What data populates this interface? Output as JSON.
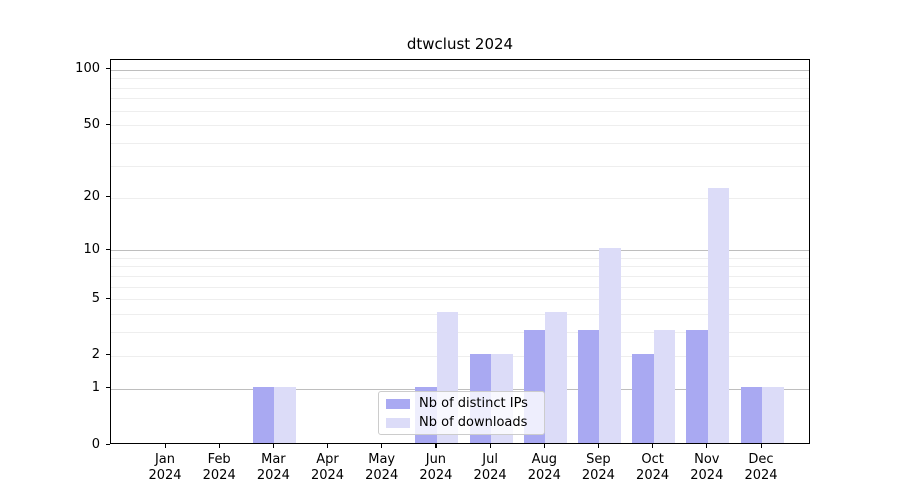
{
  "title": "dtwclust 2024",
  "legend": {
    "position": "lower center",
    "items": [
      {
        "label": "Nb of distinct IPs",
        "color": "#a9a9f2"
      },
      {
        "label": "Nb of downloads",
        "color": "#dcdcf8"
      }
    ]
  },
  "chart_data": {
    "type": "bar",
    "title": "dtwclust 2024",
    "xlabel": "",
    "ylabel": "",
    "y_scale": "log1p",
    "ylim": [
      0,
      113
    ],
    "grid": "on",
    "legend_position": "lower center",
    "categories": [
      "Jan 2024",
      "Feb 2024",
      "Mar 2024",
      "Apr 2024",
      "May 2024",
      "Jun 2024",
      "Jul 2024",
      "Aug 2024",
      "Sep 2024",
      "Oct 2024",
      "Nov 2024",
      "Dec 2024"
    ],
    "series": [
      {
        "name": "Nb of distinct IPs",
        "color": "#a9a9f2",
        "values": [
          0,
          0,
          1,
          0,
          0,
          1,
          2,
          3,
          3,
          2,
          3,
          1
        ]
      },
      {
        "name": "Nb of downloads",
        "color": "#dcdcf8",
        "values": [
          0,
          0,
          1,
          0,
          0,
          4,
          2,
          4,
          10,
          3,
          22,
          1
        ]
      }
    ],
    "yticks": [
      0,
      1,
      2,
      5,
      10,
      20,
      50,
      100
    ],
    "major_gridlines": [
      1,
      10,
      100
    ],
    "minor_gridlines": [
      2,
      3,
      4,
      5,
      6,
      7,
      8,
      9,
      20,
      30,
      40,
      50,
      60,
      70,
      80,
      90
    ]
  },
  "colors": {
    "background": "#ffffff",
    "spine": "#000000",
    "major_grid": "#bdbdbd",
    "minor_grid": "#ededed",
    "text": "#000000"
  }
}
